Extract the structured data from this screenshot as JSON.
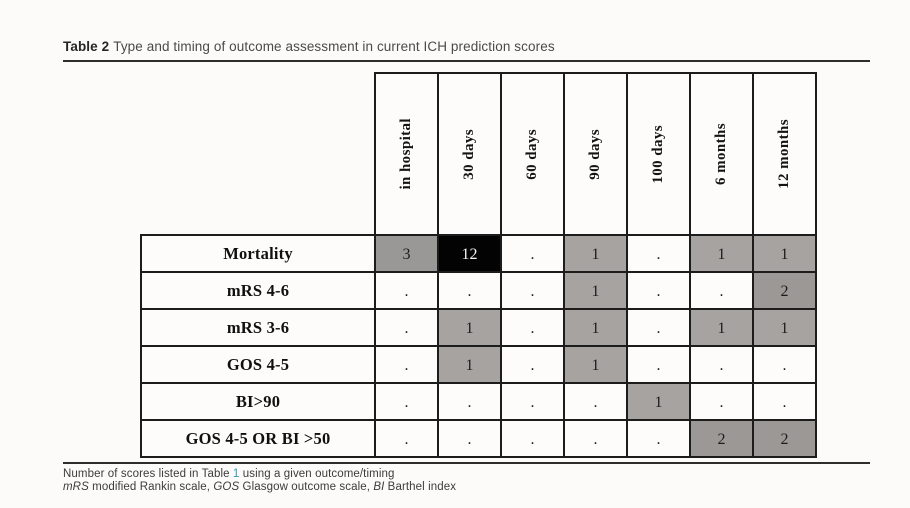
{
  "title": {
    "label": "Table 2",
    "text": "Type and timing of outcome assessment in current ICH prediction scores"
  },
  "table": {
    "columns": [
      "in hospital",
      "30 days",
      "60 days",
      "90 days",
      "100 days",
      "6 months",
      "12 months"
    ],
    "rows": [
      {
        "label": "Mortality",
        "cells": [
          {
            "value": "3",
            "shade": "gray3"
          },
          {
            "value": "12",
            "shade": "black"
          },
          {
            "value": "."
          },
          {
            "value": "1",
            "shade": "gray1"
          },
          {
            "value": "."
          },
          {
            "value": "1",
            "shade": "gray1"
          },
          {
            "value": "1",
            "shade": "gray1"
          }
        ]
      },
      {
        "label": "mRS 4-6",
        "cells": [
          {
            "value": "."
          },
          {
            "value": "."
          },
          {
            "value": "."
          },
          {
            "value": "1",
            "shade": "gray1"
          },
          {
            "value": "."
          },
          {
            "value": "."
          },
          {
            "value": "2",
            "shade": "gray2"
          }
        ]
      },
      {
        "label": "mRS 3-6",
        "cells": [
          {
            "value": "."
          },
          {
            "value": "1",
            "shade": "gray1"
          },
          {
            "value": "."
          },
          {
            "value": "1",
            "shade": "gray1"
          },
          {
            "value": "."
          },
          {
            "value": "1",
            "shade": "gray1"
          },
          {
            "value": "1",
            "shade": "gray1"
          }
        ]
      },
      {
        "label": "GOS 4-5",
        "cells": [
          {
            "value": "."
          },
          {
            "value": "1",
            "shade": "gray1"
          },
          {
            "value": "."
          },
          {
            "value": "1",
            "shade": "gray1"
          },
          {
            "value": "."
          },
          {
            "value": "."
          },
          {
            "value": "."
          }
        ]
      },
      {
        "label": "BI>90",
        "cells": [
          {
            "value": "."
          },
          {
            "value": "."
          },
          {
            "value": "."
          },
          {
            "value": "."
          },
          {
            "value": "1",
            "shade": "gray1"
          },
          {
            "value": "."
          },
          {
            "value": "."
          }
        ]
      },
      {
        "label": "GOS 4-5 OR BI >50",
        "cells": [
          {
            "value": "."
          },
          {
            "value": "."
          },
          {
            "value": "."
          },
          {
            "value": "."
          },
          {
            "value": "."
          },
          {
            "value": "2",
            "shade": "gray2"
          },
          {
            "value": "2",
            "shade": "gray2"
          }
        ]
      }
    ]
  },
  "footnotes": {
    "line1": [
      {
        "text": "Number of scores listed in Table "
      },
      {
        "text": "1",
        "style": "link"
      },
      {
        "text": " using a given outcome/timing"
      }
    ],
    "line2": [
      {
        "text": "mRS",
        "style": "italic"
      },
      {
        "text": " modified Rankin scale, "
      },
      {
        "text": "GOS",
        "style": "italic"
      },
      {
        "text": " Glasgow outcome scale, "
      },
      {
        "text": "BI",
        "style": "italic"
      },
      {
        "text": " Barthel index"
      }
    ]
  },
  "colors": {
    "shade_gray1": "#a7a3a0",
    "shade_gray2": "#9b9896",
    "shade_gray3": "#9a9897",
    "shade_black": "#030303",
    "border": "#1c1c1c",
    "link": "#2a9cba"
  }
}
